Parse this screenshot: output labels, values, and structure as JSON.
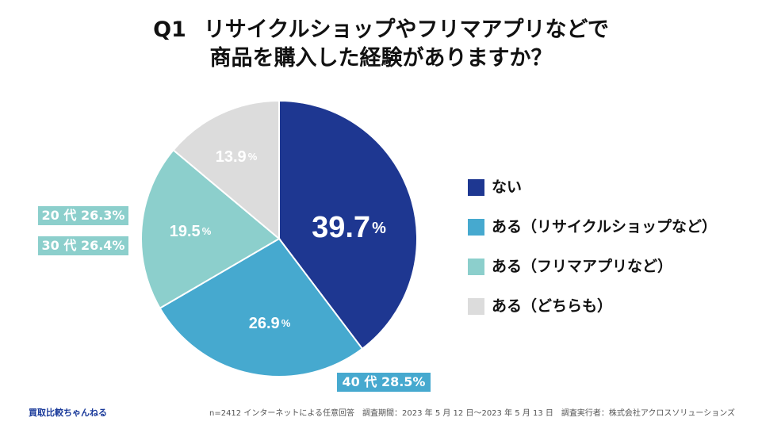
{
  "title": {
    "q": "Q1",
    "line1": "リサイクルショップやフリマアプリなどで",
    "line2": "商品を購入した経験がありますか？"
  },
  "chart_data": {
    "type": "pie",
    "title": "Q1 リサイクルショップやフリマアプリなどで商品を購入した経験がありますか？",
    "slices": [
      {
        "label": "ない",
        "value": 39.7,
        "display": "39.7",
        "color": "#1e3791",
        "text_color": "#ffffff"
      },
      {
        "label": "ある（リサイクルショップなど）",
        "value": 26.9,
        "display": "26.9",
        "color": "#46a9cf",
        "text_color": "#ffffff"
      },
      {
        "label": "ある（フリマアプリなど）",
        "value": 19.5,
        "display": "19.5",
        "color": "#8ccfcc",
        "text_color": "#ffffff"
      },
      {
        "label": "ある（どちらも）",
        "value": 13.9,
        "display": "13.9",
        "color": "#dcdcdc",
        "text_color": "#ffffff"
      }
    ],
    "unit": "%",
    "legend_position": "right",
    "annotations": [
      {
        "text": "20 代 26.3%",
        "slice": "ある（フリマアプリなど）",
        "color": "#8ccfcc"
      },
      {
        "text": "30 代 26.4%",
        "slice": "ある（フリマアプリなど）",
        "color": "#8ccfcc"
      },
      {
        "text": "40 代 28.5%",
        "slice": "ある（リサイクルショップなど）",
        "color": "#46a9cf"
      }
    ]
  },
  "footer": {
    "brand": "買取比較ちゃんねる",
    "note": "n=2412 インターネットによる任意回答　調査期間：2023 年 5 月 12 日〜2023 年 5 月 13 日　調査実行者：株式会社アクロスソリューションズ"
  }
}
